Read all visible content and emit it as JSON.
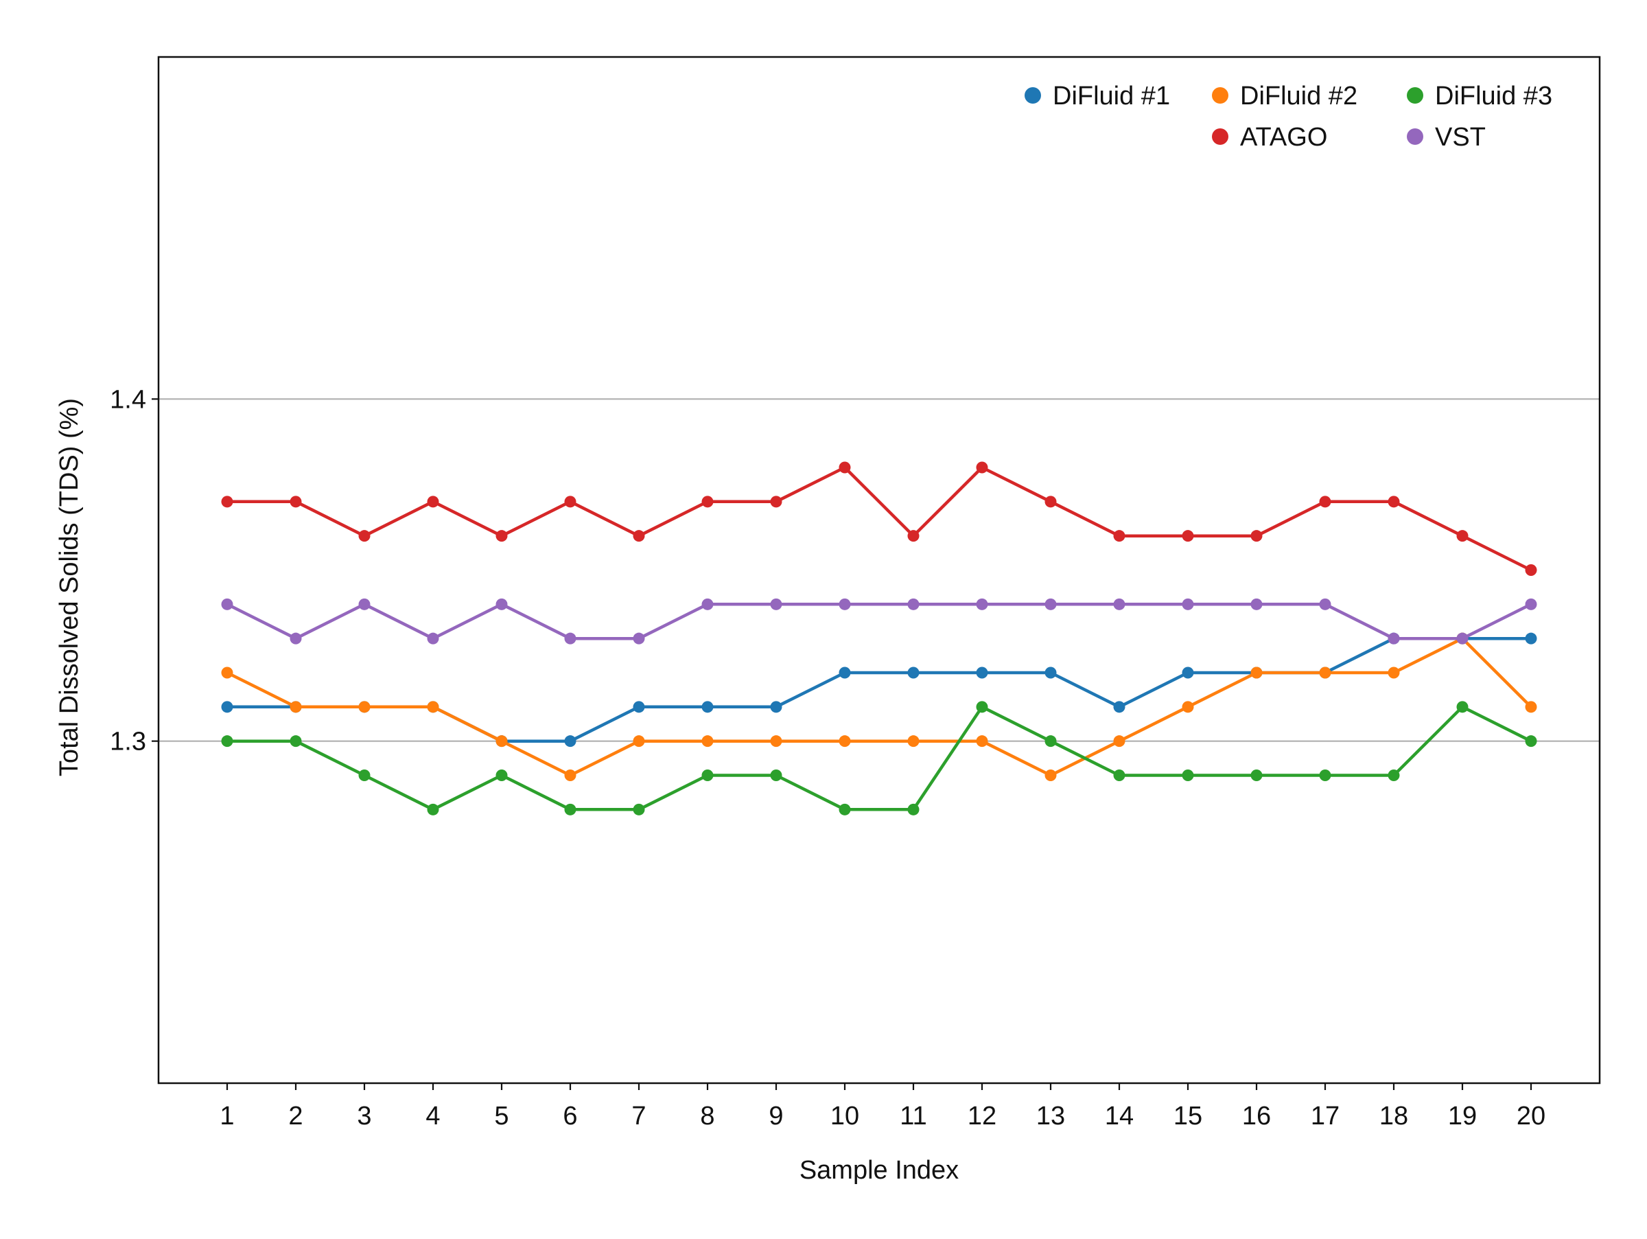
{
  "chart_data": {
    "type": "line",
    "xlabel": "Sample Index",
    "ylabel": "Total Dissolved Solids (TDS) (%)",
    "x": [
      1,
      2,
      3,
      4,
      5,
      6,
      7,
      8,
      9,
      10,
      11,
      12,
      13,
      14,
      15,
      16,
      17,
      18,
      19,
      20
    ],
    "x_tick_labels": [
      "1",
      "2",
      "3",
      "4",
      "5",
      "6",
      "7",
      "8",
      "9",
      "10",
      "11",
      "12",
      "13",
      "14",
      "15",
      "16",
      "17",
      "18",
      "19",
      "20"
    ],
    "y_ticks": [
      1.3,
      1.4
    ],
    "y_tick_labels": [
      "1.3",
      "1.4"
    ],
    "xlim": [
      0,
      21
    ],
    "ylim": [
      1.2,
      1.5
    ],
    "grid": "horizontal",
    "legend_position": "top-right",
    "series": [
      {
        "name": "DiFluid #1",
        "color": "#1f77b4",
        "values": [
          1.31,
          1.31,
          1.31,
          1.31,
          1.3,
          1.3,
          1.31,
          1.31,
          1.31,
          1.32,
          1.32,
          1.32,
          1.32,
          1.31,
          1.32,
          1.32,
          1.32,
          1.33,
          1.33,
          1.33
        ]
      },
      {
        "name": "DiFluid #2",
        "color": "#ff7f0e",
        "values": [
          1.32,
          1.31,
          1.31,
          1.31,
          1.3,
          1.29,
          1.3,
          1.3,
          1.3,
          1.3,
          1.3,
          1.3,
          1.29,
          1.3,
          1.31,
          1.32,
          1.32,
          1.32,
          1.33,
          1.31
        ]
      },
      {
        "name": "DiFluid #3",
        "color": "#2ca02c",
        "values": [
          1.3,
          1.3,
          1.29,
          1.28,
          1.29,
          1.28,
          1.28,
          1.29,
          1.29,
          1.28,
          1.28,
          1.31,
          1.3,
          1.29,
          1.29,
          1.29,
          1.29,
          1.29,
          1.31,
          1.3
        ]
      },
      {
        "name": "ATAGO",
        "color": "#d62728",
        "values": [
          1.37,
          1.37,
          1.36,
          1.37,
          1.36,
          1.37,
          1.36,
          1.37,
          1.37,
          1.38,
          1.36,
          1.38,
          1.37,
          1.36,
          1.36,
          1.36,
          1.37,
          1.37,
          1.36,
          1.35
        ]
      },
      {
        "name": "VST",
        "color": "#9467bd",
        "values": [
          1.34,
          1.33,
          1.34,
          1.33,
          1.34,
          1.33,
          1.33,
          1.34,
          1.34,
          1.34,
          1.34,
          1.34,
          1.34,
          1.34,
          1.34,
          1.34,
          1.34,
          1.33,
          1.33,
          1.34
        ]
      }
    ]
  }
}
